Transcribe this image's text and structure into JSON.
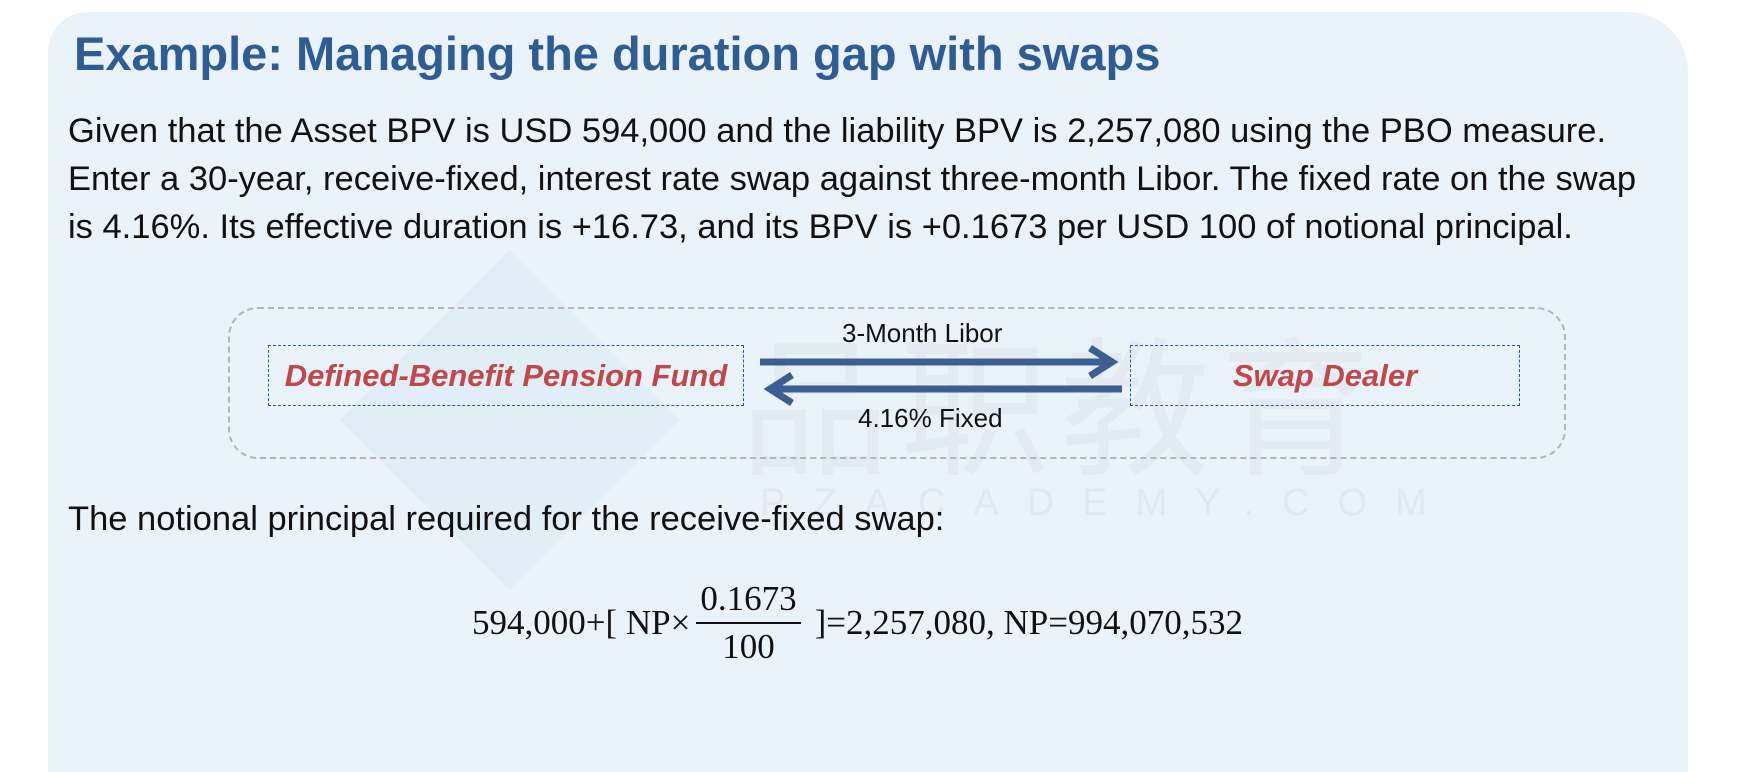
{
  "title": "Example: Managing the duration gap with swaps",
  "intro": "Given that the Asset BPV is USD 594,000 and the liability BPV is 2,257,080 using the PBO measure. Enter a 30-year, receive-fixed, interest rate swap against three-month Libor. The fixed rate on the swap is 4.16%. Its effective duration is +16.73, and its BPV is +0.1673 per USD 100 of notional principal.",
  "diagram": {
    "left_party": "Defined-Benefit Pension Fund",
    "right_party": "Swap Dealer",
    "top_flow": "3-Month Libor",
    "bottom_flow": "4.16% Fixed"
  },
  "watermark": {
    "text": "品职教育",
    "url": "PZACADEMY.COM"
  },
  "question": "The notional principal required for the receive-fixed swap:",
  "formula": {
    "left": "594,000+[ NP×",
    "numerator": "0.1673",
    "denominator": "100",
    "right": "]=2,257,080, NP=994,070,532"
  },
  "colors": {
    "title": "#2f5d93",
    "party_text": "#c0484a",
    "arrow": "#3b5f91",
    "background": "#eaf2fa"
  }
}
